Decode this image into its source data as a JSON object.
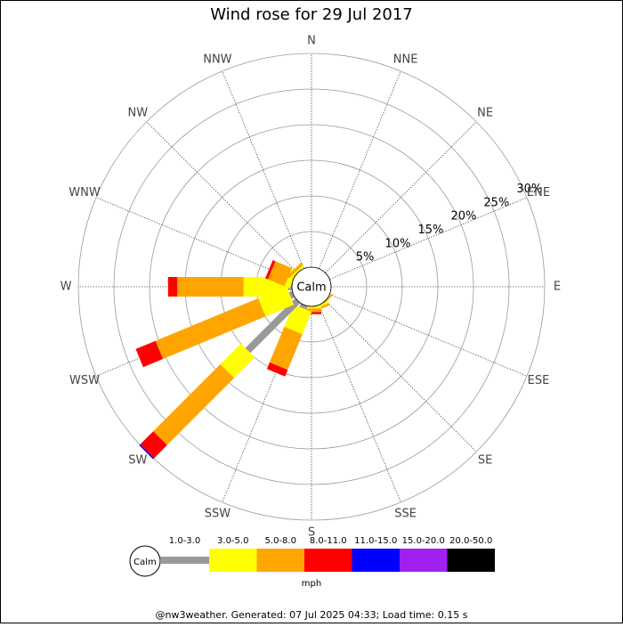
{
  "chart_data": {
    "type": "windrose",
    "title": "Wind rose for 29 Jul 2017",
    "categories": [
      "N",
      "NNE",
      "NE",
      "ENE",
      "E",
      "ESE",
      "SE",
      "SSE",
      "S",
      "SSW",
      "SW",
      "WSW",
      "W",
      "WNW",
      "NW",
      "NNW"
    ],
    "calm_label": "Calm",
    "rlim": [
      0,
      30
    ],
    "rticks": [
      {
        "value": 5,
        "label": "5%"
      },
      {
        "value": 10,
        "label": "10%"
      },
      {
        "value": 15,
        "label": "15%"
      },
      {
        "value": 20,
        "label": "20%"
      },
      {
        "value": 25,
        "label": "25%"
      },
      {
        "value": 30,
        "label": "30%"
      }
    ],
    "series": [
      {
        "name": "1.0-3.0",
        "color": "#999999",
        "values": [
          0,
          0,
          0,
          0,
          0,
          0,
          0,
          0,
          0,
          0.5,
          9.9,
          0.5,
          0.5,
          0,
          0,
          0
        ]
      },
      {
        "name": "3.0-5.0",
        "color": "#ffff00",
        "values": [
          0,
          0,
          0,
          0,
          0,
          0,
          0,
          0.3,
          0.3,
          3.4,
          4.1,
          4.3,
          6.3,
          0.8,
          0.3,
          0
        ]
      },
      {
        "name": "5.0-8.0",
        "color": "#ffa500",
        "values": [
          0,
          0,
          0,
          0,
          0,
          0,
          0.2,
          0.3,
          0.5,
          5.4,
          13.3,
          15.6,
          9.3,
          2.5,
          0.4,
          0
        ]
      },
      {
        "name": "8.0-11.0",
        "color": "#ff0000",
        "values": [
          0,
          0,
          0,
          0,
          0,
          0,
          0,
          0,
          0.3,
          1.0,
          2.6,
          3.0,
          1.3,
          0.4,
          0,
          0
        ]
      },
      {
        "name": "11.0-15.0",
        "color": "#0000ff",
        "values": [
          0,
          0,
          0,
          0,
          0,
          0,
          0,
          0,
          0,
          0,
          0.2,
          0,
          0,
          0,
          0,
          0
        ]
      },
      {
        "name": "15.0-20.0",
        "color": "#a020f0",
        "values": [
          0,
          0,
          0,
          0,
          0,
          0,
          0,
          0,
          0,
          0,
          0,
          0,
          0,
          0,
          0,
          0
        ]
      },
      {
        "name": "20.0-50.0",
        "color": "#000000",
        "values": [
          0,
          0,
          0,
          0,
          0,
          0,
          0,
          0,
          0,
          0,
          0,
          0,
          0,
          0,
          0,
          0
        ]
      }
    ],
    "units": "mph",
    "footer": "@nw3weather. Generated: 07 Jul 2025 04:33; Load time: 0.15 s"
  }
}
